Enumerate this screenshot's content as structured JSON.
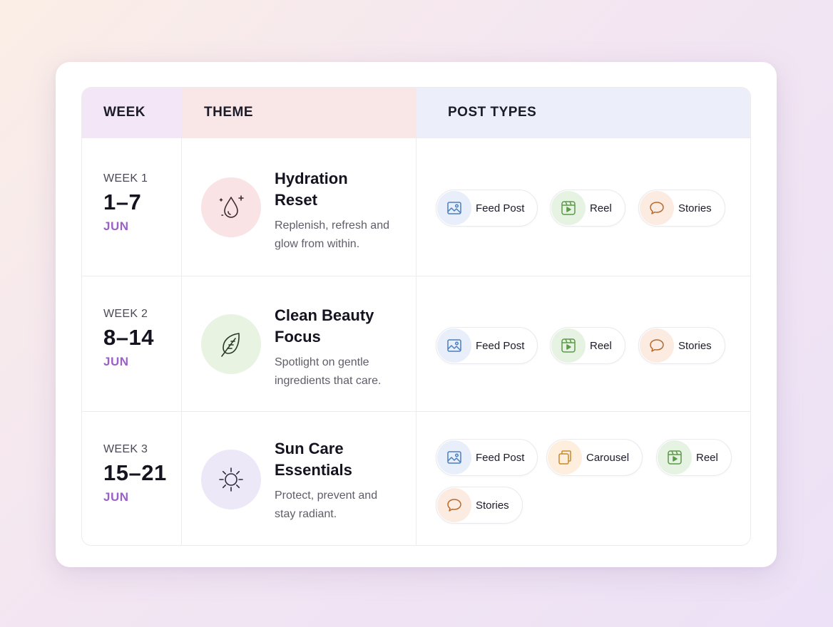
{
  "header": {
    "week": "WEEK",
    "theme": "THEME",
    "post_types": "POST TYPES"
  },
  "rows": [
    {
      "week_label": "WEEK 1",
      "range": "1–7",
      "month": "JUN",
      "theme_icon": "water-drop-sparkle-icon",
      "title_line1": "Hydration",
      "title_line2": "Reset",
      "desc_line1": "Replenish, refresh and",
      "desc_line2": "glow from within.",
      "post_types": [
        "Feed Post",
        "Reel",
        "Stories"
      ]
    },
    {
      "week_label": "WEEK 2",
      "range": "8–14",
      "month": "JUN",
      "theme_icon": "leaf-icon",
      "title_line1": "Clean Beauty",
      "title_line2": "Focus",
      "desc_line1": "Spotlight on gentle",
      "desc_line2": "ingredients that care.",
      "post_types": [
        "Feed Post",
        "Reel",
        "Stories"
      ]
    },
    {
      "week_label": "WEEK 3",
      "range": "15–21",
      "month": "JUN",
      "theme_icon": "sun-icon",
      "title_line1": "Sun Care",
      "title_line2": "Essentials",
      "desc_line1": "Protect, prevent and",
      "desc_line2": "stay radiant.",
      "post_types": [
        "Feed Post",
        "Carousel",
        "Reel",
        "Stories"
      ]
    }
  ],
  "colors": {
    "month_accent": "#9a62c8",
    "header_week_bg": "#f2e6f7",
    "header_theme_bg": "#f9e6e6",
    "header_types_bg": "#eceff9",
    "hydration_icon_bg": "#f9e3e5",
    "leaf_icon_bg": "#e8f3e2",
    "sun_icon_bg": "#ece8f8"
  }
}
